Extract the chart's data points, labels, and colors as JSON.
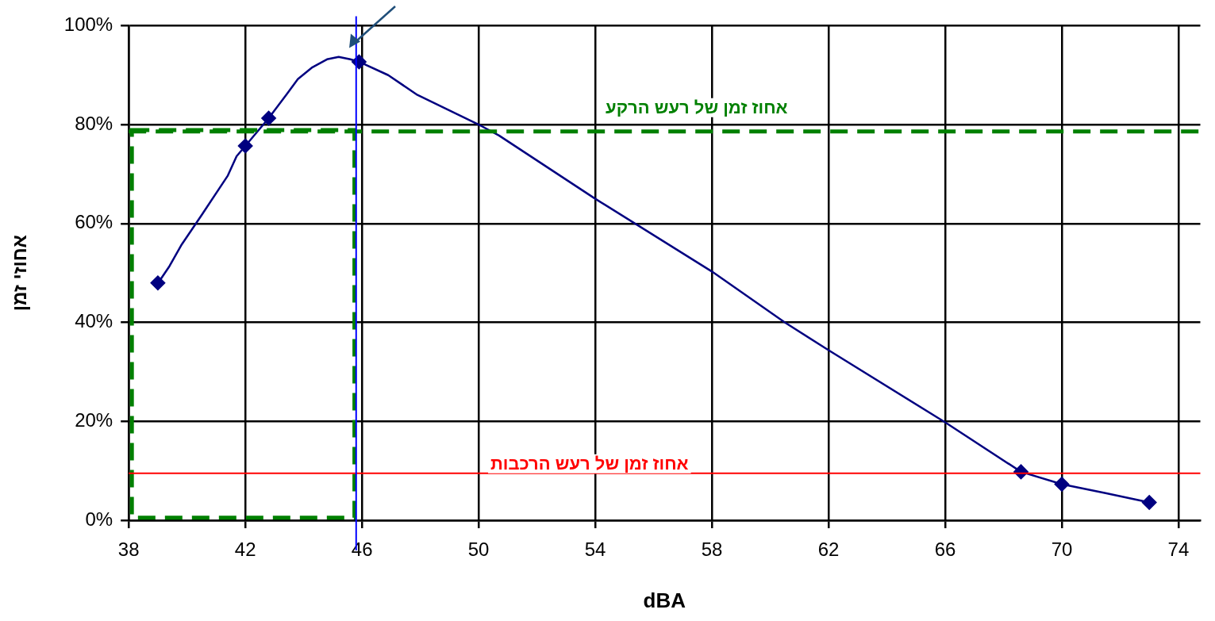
{
  "chart_data": {
    "type": "line",
    "xlabel": "dBA",
    "ylabel": "אחוזי זמן",
    "xlim": [
      38,
      74.75
    ],
    "xticks": [
      38,
      42,
      46,
      50,
      54,
      58,
      62,
      66,
      70,
      74
    ],
    "ylim": [
      0,
      100
    ],
    "yticks": [
      {
        "value": 0,
        "label": "0%"
      },
      {
        "value": 20,
        "label": "20%"
      },
      {
        "value": 40,
        "label": "40%"
      },
      {
        "value": 60,
        "label": "60%"
      },
      {
        "value": 80,
        "label": "80%"
      },
      {
        "value": 100,
        "label": "100%"
      }
    ],
    "grid": true,
    "legend": false,
    "series": [
      {
        "color": "#000080",
        "marker": "none",
        "line_style": "solid",
        "x": [
          39,
          39.4,
          39.8,
          40.5,
          41.4,
          41.7,
          42,
          42.8,
          43.4,
          43.8,
          44.3,
          44.8,
          45.2,
          45.6,
          45.9,
          46.9,
          47.9,
          50.1,
          50.7,
          54,
          58,
          60.5,
          62,
          66,
          68.6,
          70,
          71.5,
          73
        ],
        "values": [
          47.9,
          51.4,
          55.6,
          61.7,
          69.7,
          73.6,
          75.7,
          81.3,
          86,
          89.2,
          91.6,
          93.2,
          93.7,
          93.2,
          92.7,
          90,
          86,
          79.7,
          77.8,
          65,
          50.3,
          40,
          34.4,
          19.8,
          9.8,
          7.3,
          5.5,
          3.6
        ]
      },
      {
        "type": "scatter",
        "color": "#000080",
        "marker": "diamond",
        "x": [
          39,
          42,
          42.8,
          45.9,
          68.6,
          70,
          73
        ],
        "values": [
          48,
          75.7,
          81.3,
          92.7,
          9.8,
          7.3,
          3.6
        ]
      },
      {
        "type": "bar",
        "color": "#008000",
        "line_style": "dashed",
        "x": [
          41.925
        ],
        "values": [
          78.9
        ]
      }
    ],
    "ref_lines": [
      {
        "axis": "y",
        "value": 78.6,
        "label": "אחוז זמן של רעש הרקע",
        "color": "#008000",
        "line_style": "dashed"
      },
      {
        "axis": "y",
        "value": 9.5,
        "label": "אחוז זמן של רעש הרכבות",
        "color": "#ff0000",
        "line_style": "solid"
      },
      {
        "axis": "x",
        "value": 45.8,
        "color": "#0000ff",
        "line_style": "solid"
      }
    ]
  }
}
